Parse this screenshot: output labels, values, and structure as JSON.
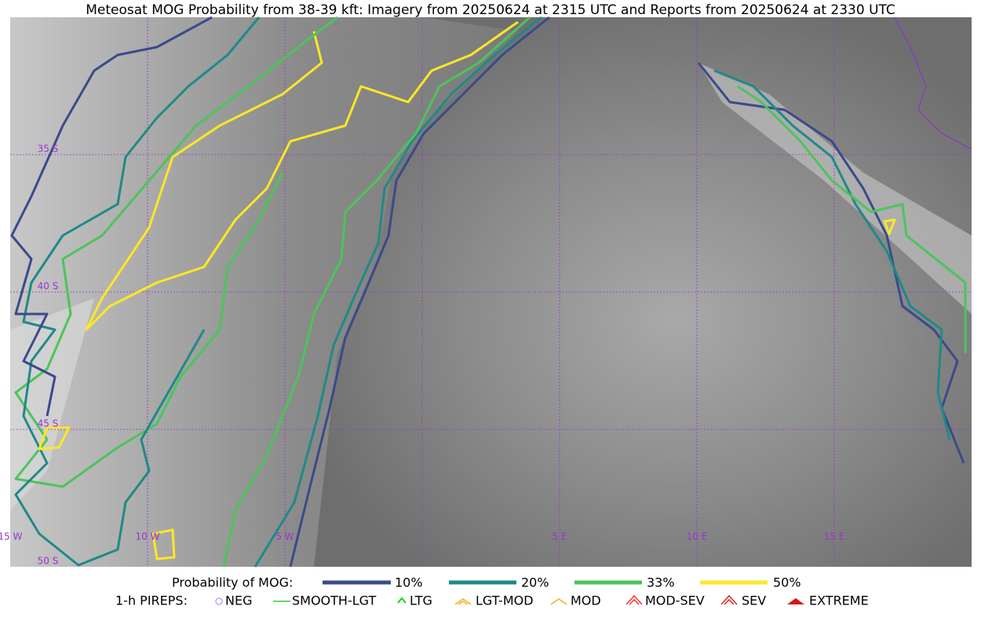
{
  "title": "Meteosat MOG Probability from 38-39 kft: Imagery from 20250624 at 2315 UTC and Reports from 20250624 at 2330 UTC",
  "map": {
    "lat_labels": [
      "35 S",
      "40 S",
      "45 S",
      "50 S"
    ],
    "lon_labels": [
      "15 W",
      "10 W",
      "5 W",
      "5 E",
      "10 E",
      "15 E"
    ]
  },
  "legend": {
    "probability": {
      "label": "Probability of MOG:",
      "entries": [
        "10%",
        "20%",
        "33%",
        "50%"
      ]
    },
    "pireps": {
      "label": "1-h PIREPS:",
      "entries": [
        "NEG",
        "SMOOTH-LGT",
        "LTG",
        "LGT-MOD",
        "MOD",
        "MOD-SEV",
        "SEV",
        "EXTREME"
      ]
    }
  }
}
